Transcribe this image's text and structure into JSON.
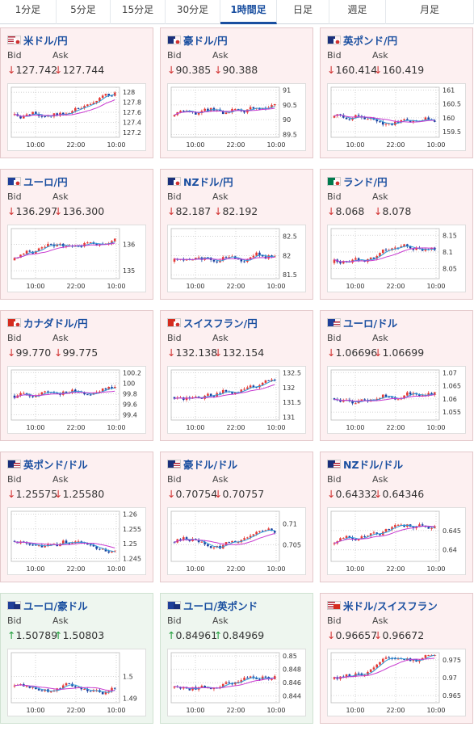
{
  "tabs": [
    "1分足",
    "5分足",
    "15分足",
    "30分足",
    "1時間足",
    "日足",
    "週足",
    "月足"
  ],
  "active_tab": "1時間足",
  "bid_label": "Bid",
  "ask_label": "Ask",
  "x_ticks": [
    "10:00",
    "22:00",
    "10:00"
  ],
  "colors": {
    "up_candle": "#e53935",
    "down_candle": "#1a3f9e",
    "ma_short": "#2f9bd8",
    "ma_long": "#c83ad0",
    "down_arrow": "#d0302f",
    "up_arrow": "#1f9e3a",
    "card_down_bg": "#fdf0f1",
    "card_up_bg": "#eef6ef"
  },
  "pairs": [
    {
      "name": "米ドル/円",
      "flag": "us-jp",
      "trend": "down",
      "bid_arrow": "↓",
      "bid": "127.742",
      "ask_arrow": "↓",
      "ask": "127.744",
      "yticks": [
        "128",
        "127.8",
        "127.6",
        "127.4",
        "127.2"
      ],
      "ymin": 127.1,
      "ymax": 128.1
    },
    {
      "name": "豪ドル/円",
      "flag": "au-jp",
      "trend": "down",
      "bid_arrow": "↓",
      "bid": "90.385",
      "ask_arrow": "↓",
      "ask": "90.388",
      "yticks": [
        "91",
        "90.5",
        "90",
        "89.5"
      ],
      "ymin": 89.4,
      "ymax": 91.1
    },
    {
      "name": "英ポンド/円",
      "flag": "gb-jp",
      "trend": "down",
      "bid_arrow": "↓",
      "bid": "160.414",
      "ask_arrow": "↓",
      "ask": "160.419",
      "yticks": [
        "161",
        "160.5",
        "160",
        "159.5"
      ],
      "ymin": 159.3,
      "ymax": 161.1
    },
    {
      "name": "ユーロ/円",
      "flag": "eu-jp",
      "trend": "down",
      "bid_arrow": "↓",
      "bid": "136.297",
      "ask_arrow": "↓",
      "ask": "136.300",
      "yticks": [
        "136",
        "135"
      ],
      "ymin": 134.7,
      "ymax": 136.6
    },
    {
      "name": "NZドル/円",
      "flag": "nz-jp",
      "trend": "down",
      "bid_arrow": "↓",
      "bid": "82.187",
      "ask_arrow": "↓",
      "ask": "82.192",
      "yticks": [
        "82.5",
        "82",
        "81.5"
      ],
      "ymin": 81.4,
      "ymax": 82.7
    },
    {
      "name": "ランド/円",
      "flag": "za-jp",
      "trend": "down",
      "bid_arrow": "↓",
      "bid": "8.068",
      "ask_arrow": "↓",
      "ask": "8.078",
      "yticks": [
        "8.15",
        "8.1",
        "8.05"
      ],
      "ymin": 8.02,
      "ymax": 8.17
    },
    {
      "name": "カナダドル/円",
      "flag": "ca-jp",
      "trend": "down",
      "bid_arrow": "↓",
      "bid": "99.770",
      "ask_arrow": "↓",
      "ask": "99.775",
      "yticks": [
        "100.2",
        "100",
        "99.8",
        "99.6",
        "99.4"
      ],
      "ymin": 99.3,
      "ymax": 100.25
    },
    {
      "name": "スイスフラン/円",
      "flag": "ch-jp",
      "trend": "down",
      "bid_arrow": "↓",
      "bid": "132.138",
      "ask_arrow": "↓",
      "ask": "132.154",
      "yticks": [
        "132.5",
        "132",
        "131.5",
        "131"
      ],
      "ymin": 130.9,
      "ymax": 132.6
    },
    {
      "name": "ユーロ/ドル",
      "flag": "eu-us",
      "trend": "down",
      "bid_arrow": "↓",
      "bid": "1.06696",
      "ask_arrow": "↓",
      "ask": "1.06699",
      "yticks": [
        "1.07",
        "1.065",
        "1.06",
        "1.055"
      ],
      "ymin": 1.052,
      "ymax": 1.071
    },
    {
      "name": "英ポンド/ドル",
      "flag": "gb-us",
      "trend": "down",
      "bid_arrow": "↓",
      "bid": "1.25575",
      "ask_arrow": "↓",
      "ask": "1.25580",
      "yticks": [
        "1.26",
        "1.255",
        "1.25",
        "1.245"
      ],
      "ymin": 1.244,
      "ymax": 1.261
    },
    {
      "name": "豪ドル/ドル",
      "flag": "au-us",
      "trend": "down",
      "bid_arrow": "↓",
      "bid": "0.70754",
      "ask_arrow": "↓",
      "ask": "0.70757",
      "yticks": [
        "0.71",
        "0.705"
      ],
      "ymin": 0.701,
      "ymax": 0.713
    },
    {
      "name": "NZドル/ドル",
      "flag": "nz-us",
      "trend": "down",
      "bid_arrow": "↓",
      "bid": "0.64332",
      "ask_arrow": "↓",
      "ask": "0.64346",
      "yticks": [
        "0.645",
        "0.64"
      ],
      "ymin": 0.637,
      "ymax": 0.65
    },
    {
      "name": "ユーロ/豪ドル",
      "flag": "eu-au",
      "trend": "up",
      "bid_arrow": "↑",
      "bid": "1.50789",
      "ask_arrow": "↑",
      "ask": "1.50803",
      "yticks": [
        "1.5",
        "1.49"
      ],
      "ymin": 1.488,
      "ymax": 1.511
    },
    {
      "name": "ユーロ/英ポンド",
      "flag": "eu-gb",
      "trend": "up",
      "bid_arrow": "↑",
      "bid": "0.84961",
      "ask_arrow": "↑",
      "ask": "0.84969",
      "yticks": [
        "0.85",
        "0.848",
        "0.846",
        "0.844"
      ],
      "ymin": 0.843,
      "ymax": 0.8505
    },
    {
      "name": "米ドル/スイスフラン",
      "flag": "us-ch",
      "trend": "down",
      "bid_arrow": "↓",
      "bid": "0.96657",
      "ask_arrow": "↓",
      "ask": "0.96672",
      "yticks": [
        "0.975",
        "0.97",
        "0.965"
      ],
      "ymin": 0.963,
      "ymax": 0.977
    }
  ]
}
